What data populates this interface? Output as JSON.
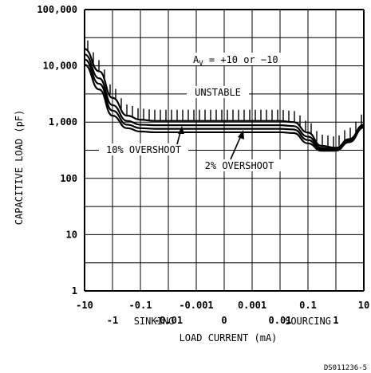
{
  "chart_data": {
    "type": "line",
    "title": "",
    "xlabel": "LOAD CURRENT (mA)",
    "ylabel": "CAPACITIVE LOAD (pF)",
    "x_scale": "symmetric-log",
    "y_scale": "log",
    "xlim": [
      -10,
      10
    ],
    "ylim": [
      1,
      100000
    ],
    "grid": true,
    "x_ticks_upper": [
      "-10",
      "-0.1",
      "-0.001",
      "0.001",
      "0.1",
      "10"
    ],
    "x_ticks_lower": [
      "-1",
      "-0.01",
      "0",
      "0.01",
      "1"
    ],
    "y_ticks": [
      "1",
      "10",
      "100",
      "1,000",
      "10,000",
      "100,000"
    ],
    "x_region_labels": [
      "SINKING",
      "SOURCING"
    ],
    "annotations": {
      "gain": "A",
      "gain_subscript": "V",
      "gain_value": " = +10 or −10",
      "unstable": "UNSTABLE",
      "ten_pct": "10% OVERSHOOT",
      "two_pct": "2% OVERSHOOT"
    },
    "series": [
      {
        "name": "UNSTABLE",
        "x": [
          -10,
          -3,
          -1,
          -0.3,
          -0.1,
          -0.03,
          -0.01,
          -0.001,
          0,
          0.001,
          0.01,
          0.03,
          0.1,
          0.3,
          1,
          3,
          10
        ],
        "y": [
          20000,
          8000,
          2700,
          1300,
          1100,
          1050,
          1050,
          1050,
          1050,
          1050,
          1050,
          1000,
          650,
          380,
          350,
          500,
          900
        ]
      },
      {
        "name": "2% OVERSHOOT",
        "x": [
          -10,
          -3,
          -1,
          -0.3,
          -0.1,
          -0.03,
          -0.01,
          -0.001,
          0,
          0.001,
          0.01,
          0.03,
          0.1,
          0.3,
          1,
          3,
          10
        ],
        "y": [
          16000,
          6000,
          2000,
          1050,
          900,
          880,
          880,
          880,
          880,
          880,
          880,
          850,
          550,
          350,
          330,
          480,
          850
        ]
      },
      {
        "name": "10% OVERSHOOT",
        "x": [
          -10,
          -3,
          -1,
          -0.3,
          -0.1,
          -0.03,
          -0.01,
          -0.001,
          0,
          0.001,
          0.01,
          0.03,
          0.1,
          0.3,
          1,
          3,
          10
        ],
        "y": [
          13000,
          4800,
          1600,
          900,
          780,
          760,
          760,
          760,
          760,
          760,
          760,
          740,
          480,
          330,
          320,
          460,
          820
        ]
      },
      {
        "name": "",
        "x": [
          -10,
          -3,
          -1,
          -0.3,
          -0.1,
          -0.03,
          -0.01,
          -0.001,
          0,
          0.001,
          0.01,
          0.03,
          0.1,
          0.3,
          1,
          3,
          10
        ],
        "y": [
          10500,
          3800,
          1300,
          780,
          680,
          660,
          660,
          660,
          660,
          660,
          660,
          640,
          420,
          310,
          310,
          440,
          800
        ]
      }
    ],
    "footnote": "DS011236-5"
  }
}
